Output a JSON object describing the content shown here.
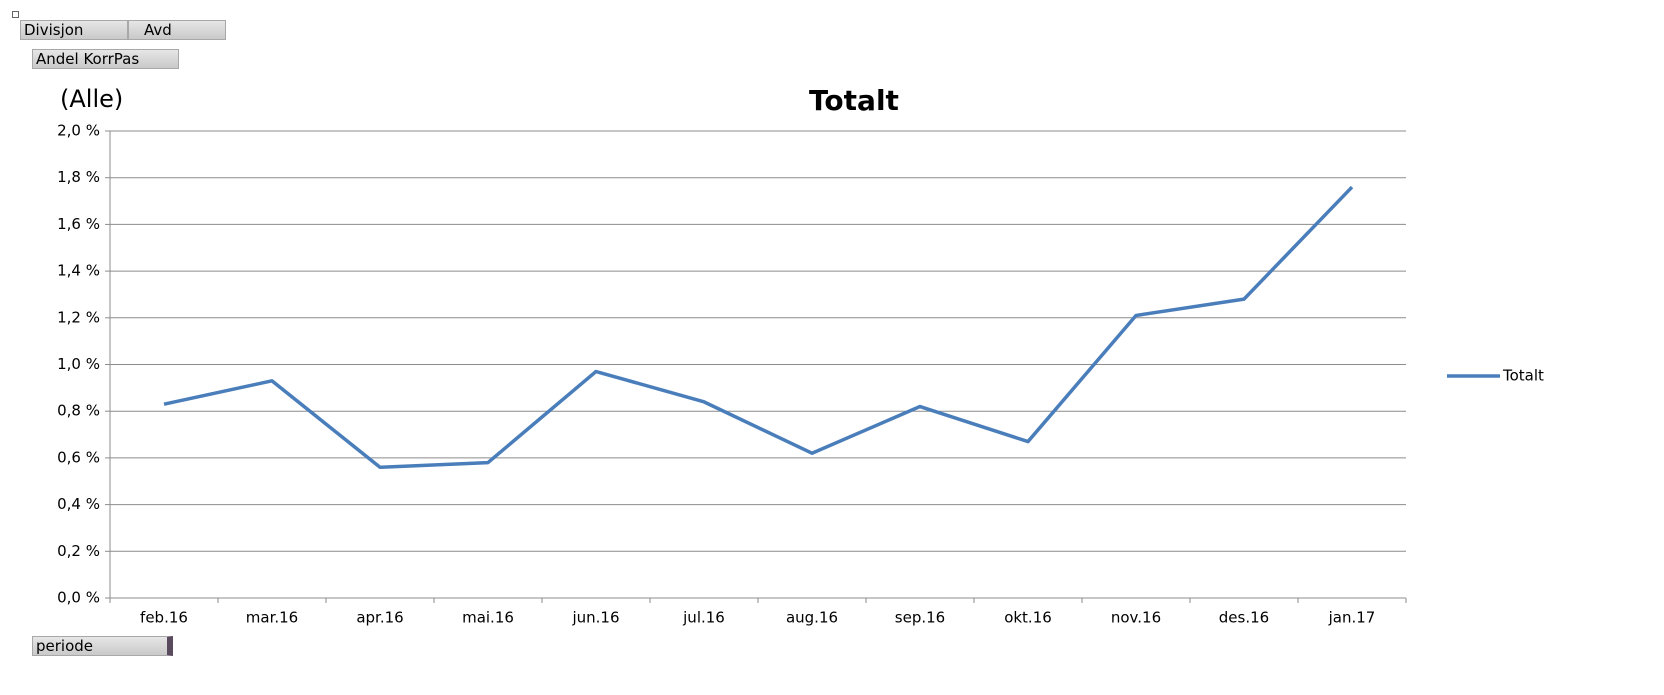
{
  "controls": {
    "filter_fields": [
      "Divisjon",
      "Avd"
    ],
    "data_field": "Andel KorrPas",
    "page_filter": "(Alle)",
    "axis_field": "periode"
  },
  "chart_data": {
    "type": "line",
    "title": "Totalt",
    "categories": [
      "feb.16",
      "mar.16",
      "apr.16",
      "mai.16",
      "jun.16",
      "jul.16",
      "aug.16",
      "sep.16",
      "okt.16",
      "nov.16",
      "des.16",
      "jan.17"
    ],
    "series": [
      {
        "name": "Totalt",
        "color": "#4a7ebb",
        "values": [
          0.83,
          0.93,
          0.56,
          0.58,
          0.97,
          0.84,
          0.62,
          0.82,
          0.67,
          1.21,
          1.28,
          1.76
        ]
      }
    ],
    "ylim": [
      0,
      2
    ],
    "yticks": [
      {
        "value": 0,
        "label": "0,0 %"
      },
      {
        "value": 0.2,
        "label": "0,2 %"
      },
      {
        "value": 0.4,
        "label": "0,4 %"
      },
      {
        "value": 0.6,
        "label": "0,6 %"
      },
      {
        "value": 0.8,
        "label": "0,8 %"
      },
      {
        "value": 1,
        "label": "1,0 %"
      },
      {
        "value": 1.2,
        "label": "1,2 %"
      },
      {
        "value": 1.4,
        "label": "1,4 %"
      },
      {
        "value": 1.6,
        "label": "1,6 %"
      },
      {
        "value": 1.8,
        "label": "1,8 %"
      },
      {
        "value": 2,
        "label": "2,0 %"
      }
    ],
    "grid": true,
    "legend": "right"
  }
}
